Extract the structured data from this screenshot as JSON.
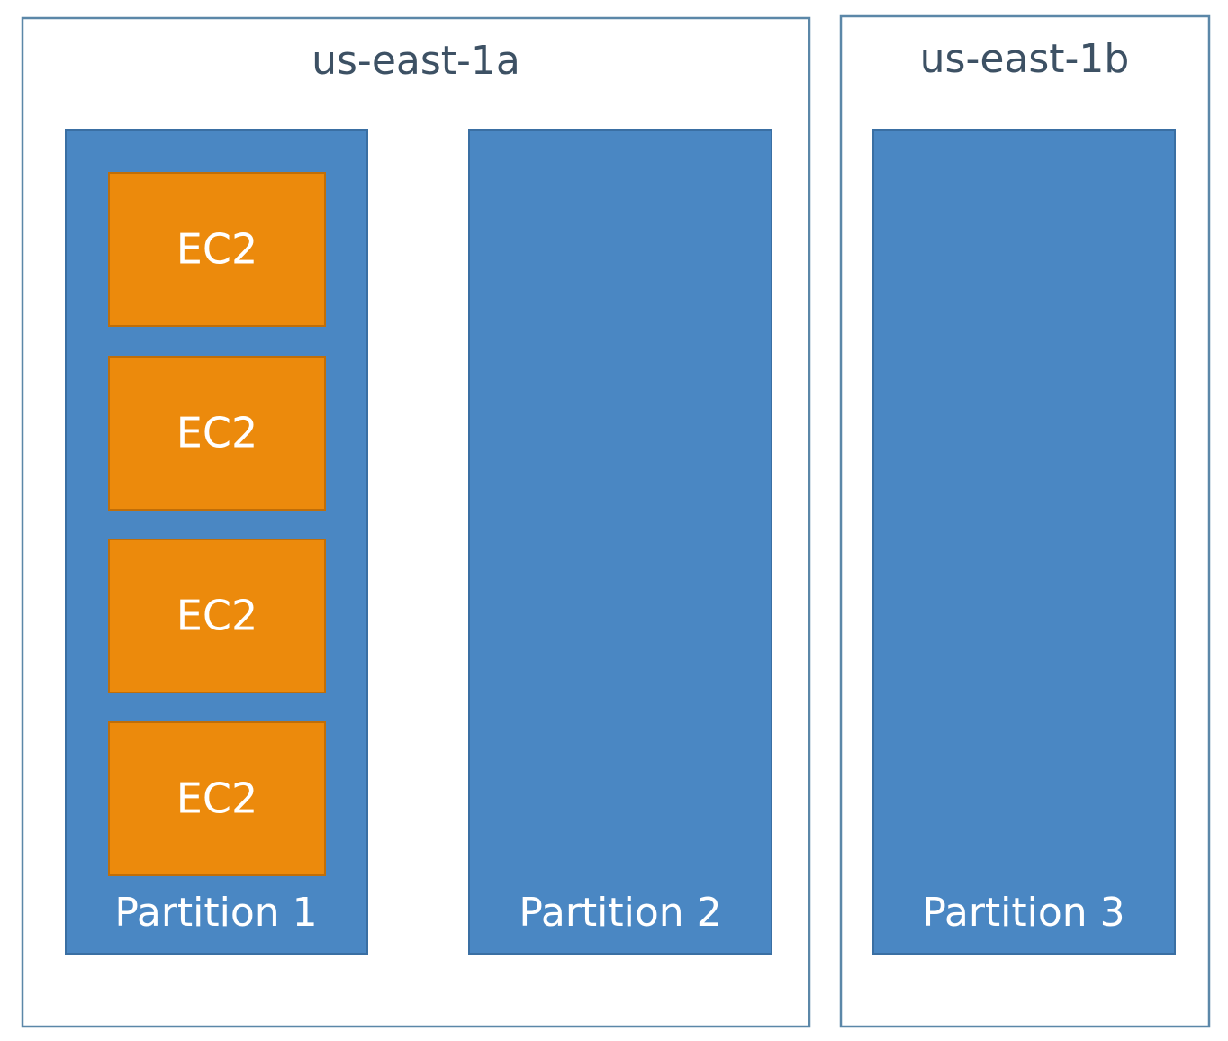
{
  "zones": [
    {
      "label": "us-east-1a",
      "partitions": [
        {
          "label": "Partition 1",
          "instances": [
            "EC2",
            "EC2",
            "EC2",
            "EC2"
          ]
        },
        {
          "label": "Partition 2",
          "instances": []
        }
      ]
    },
    {
      "label": "us-east-1b",
      "partitions": [
        {
          "label": "Partition 3",
          "instances": []
        }
      ]
    }
  ]
}
